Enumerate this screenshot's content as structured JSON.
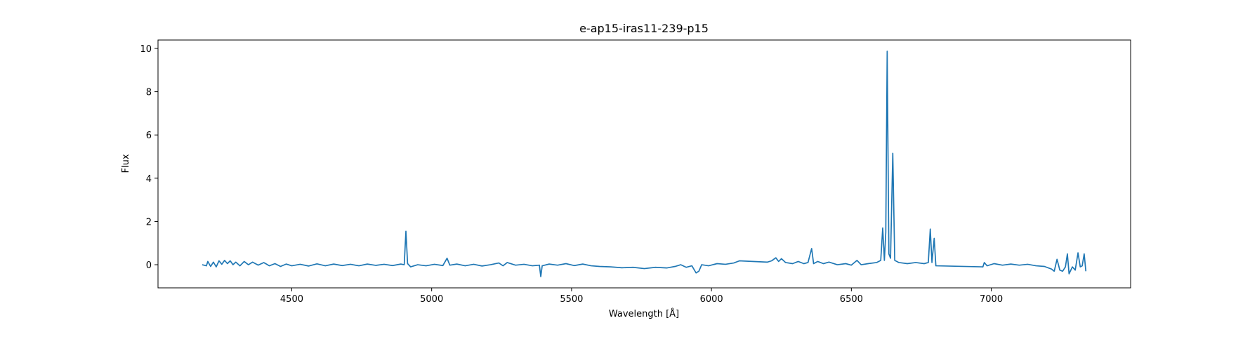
{
  "chart_data": {
    "type": "line",
    "title": "e-ap15-iras11-239-p15",
    "x_label": "Wavelength [Å]",
    "y_label": "Flux",
    "x": [
      4180,
      4195,
      4200,
      4210,
      4220,
      4230,
      4240,
      4250,
      4260,
      4270,
      4280,
      4290,
      4300,
      4315,
      4330,
      4345,
      4360,
      4380,
      4400,
      4420,
      4440,
      4460,
      4480,
      4500,
      4530,
      4560,
      4590,
      4620,
      4650,
      4680,
      4710,
      4740,
      4770,
      4800,
      4830,
      4860,
      4890,
      4902,
      4908,
      4914,
      4925,
      4950,
      4980,
      5010,
      5040,
      5055,
      5065,
      5090,
      5120,
      5150,
      5180,
      5210,
      5240,
      5255,
      5270,
      5300,
      5330,
      5360,
      5385,
      5390,
      5395,
      5420,
      5450,
      5480,
      5510,
      5540,
      5570,
      5600,
      5640,
      5680,
      5720,
      5760,
      5800,
      5840,
      5870,
      5890,
      5910,
      5930,
      5945,
      5955,
      5965,
      5990,
      6020,
      6050,
      6080,
      6100,
      6200,
      6215,
      6230,
      6240,
      6250,
      6265,
      6290,
      6310,
      6330,
      6345,
      6358,
      6365,
      6380,
      6400,
      6420,
      6450,
      6480,
      6500,
      6520,
      6535,
      6560,
      6590,
      6605,
      6612,
      6618,
      6623,
      6628,
      6634,
      6640,
      6648,
      6655,
      6670,
      6700,
      6730,
      6760,
      6775,
      6782,
      6788,
      6796,
      6802,
      6970,
      6975,
      6985,
      7010,
      7040,
      7070,
      7100,
      7130,
      7160,
      7190,
      7215,
      7225,
      7235,
      7245,
      7255,
      7265,
      7272,
      7278,
      7290,
      7300,
      7310,
      7318,
      7325,
      7332,
      7338
    ],
    "series": [
      {
        "color": "#1f77b4",
        "values": [
          0.0,
          -0.05,
          0.15,
          -0.08,
          0.12,
          -0.1,
          0.18,
          0.02,
          0.2,
          0.05,
          0.18,
          0.0,
          0.12,
          -0.05,
          0.15,
          0.0,
          0.12,
          -0.02,
          0.1,
          -0.05,
          0.05,
          -0.08,
          0.03,
          -0.05,
          0.02,
          -0.06,
          0.04,
          -0.05,
          0.03,
          -0.04,
          0.02,
          -0.05,
          0.03,
          -0.03,
          0.02,
          -0.04,
          0.03,
          0.0,
          1.55,
          0.05,
          -0.1,
          0.0,
          -0.05,
          0.02,
          -0.04,
          0.3,
          -0.02,
          0.03,
          -0.05,
          0.02,
          -0.06,
          0.0,
          0.08,
          -0.05,
          0.1,
          -0.02,
          0.02,
          -0.05,
          -0.02,
          -0.55,
          -0.05,
          0.03,
          -0.02,
          0.05,
          -0.04,
          0.03,
          -0.05,
          -0.08,
          -0.1,
          -0.14,
          -0.12,
          -0.18,
          -0.12,
          -0.15,
          -0.08,
          0.0,
          -0.12,
          -0.05,
          -0.38,
          -0.3,
          0.0,
          -0.05,
          0.05,
          0.02,
          0.08,
          0.18,
          0.12,
          0.18,
          0.32,
          0.15,
          0.28,
          0.1,
          0.05,
          0.15,
          0.05,
          0.1,
          0.75,
          0.05,
          0.15,
          0.05,
          0.12,
          0.0,
          0.05,
          -0.02,
          0.2,
          0.0,
          0.05,
          0.1,
          0.2,
          1.7,
          0.2,
          1.5,
          9.87,
          0.5,
          0.3,
          5.15,
          0.2,
          0.1,
          0.05,
          0.1,
          0.05,
          0.1,
          1.65,
          0.1,
          1.22,
          -0.05,
          -0.1,
          0.1,
          -0.05,
          0.05,
          -0.02,
          0.03,
          -0.02,
          0.02,
          -0.05,
          -0.08,
          -0.2,
          -0.3,
          0.25,
          -0.25,
          -0.3,
          -0.1,
          0.5,
          -0.42,
          -0.1,
          -0.25,
          0.55,
          -0.1,
          -0.05,
          0.5,
          -0.3
        ]
      }
    ],
    "xlim": [
      4022,
      7498
    ],
    "ylim": [
      -1.07,
      10.39
    ],
    "xticks": [
      4500,
      5000,
      5500,
      6000,
      6500,
      7000
    ],
    "yticks": [
      0,
      2,
      4,
      6,
      8,
      10
    ]
  }
}
